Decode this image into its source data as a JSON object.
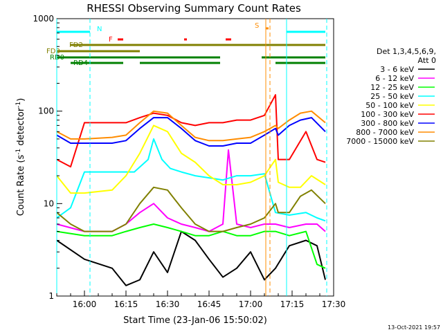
{
  "chart_data": {
    "type": "line",
    "title": "RHESSI Observing Summary Count Rates",
    "xlabel": "Start Time (23-Jan-06 15:50:02)",
    "ylabel_main": "Count Rate (s",
    "ylabel_sup1": "-1",
    "ylabel_mid": " detector",
    "ylabel_sup2": "-1",
    "ylabel_end": ")",
    "footer_date": "13-Oct-2021 19:57",
    "y_scale": "log",
    "ylim": [
      1,
      1000
    ],
    "xlim": [
      "15:50:02",
      "17:30"
    ],
    "x_ticks": [
      "16:00",
      "16:15",
      "16:30",
      "16:45",
      "17:00",
      "17:15",
      "17:30"
    ],
    "y_ticks": [
      "1",
      "10",
      "100",
      "1000"
    ],
    "legend_header": [
      "Det 1,3,4,5,6,9,",
      "Att 0"
    ],
    "series": [
      {
        "name": "3 - 6 keV",
        "color": "#000000",
        "t": [
          0,
          10,
          20,
          25,
          30,
          35,
          40,
          45,
          50,
          55,
          60,
          65,
          70,
          75,
          79,
          84,
          90,
          94,
          97
        ],
        "values": [
          4,
          2.5,
          2,
          1.3,
          1.5,
          3,
          1.8,
          5,
          4,
          2.5,
          1.6,
          2,
          3,
          1.5,
          2,
          3.5,
          4,
          3.5,
          1.5
        ]
      },
      {
        "name": "6 - 12 keV",
        "color": "#ff00ff",
        "t": [
          0,
          10,
          20,
          25,
          30,
          35,
          40,
          45,
          50,
          55,
          60,
          62,
          65,
          70,
          75,
          79,
          84,
          90,
          94,
          97
        ],
        "values": [
          6,
          5,
          5,
          6,
          8,
          10,
          7,
          6,
          5.5,
          5,
          6,
          38,
          6,
          5.5,
          6,
          6,
          5.5,
          6,
          6,
          5
        ]
      },
      {
        "name": "12 - 25 keV",
        "color": "#00ff00",
        "t": [
          0,
          10,
          20,
          25,
          30,
          35,
          40,
          45,
          50,
          55,
          60,
          65,
          70,
          75,
          79,
          84,
          90,
          94,
          97
        ],
        "values": [
          5,
          4.5,
          4.5,
          5,
          5.5,
          6,
          5.5,
          5,
          4.5,
          4.5,
          5,
          4.5,
          4.5,
          5,
          5,
          4.5,
          5,
          2.2,
          2
        ]
      },
      {
        "name": "25 - 50 keV",
        "color": "#00ffff",
        "t": [
          0,
          5,
          10,
          20,
          25,
          28,
          33,
          35,
          38,
          41,
          45,
          50,
          55,
          60,
          65,
          70,
          75,
          79,
          84,
          90,
          94,
          97
        ],
        "values": [
          7,
          9,
          22,
          22,
          22,
          22,
          30,
          50,
          30,
          24,
          22,
          20,
          19,
          18,
          20,
          20,
          21,
          8,
          7.5,
          8,
          7,
          6.5
        ]
      },
      {
        "name": "50 - 100 keV",
        "color": "#ffff00",
        "t": [
          0,
          5,
          10,
          20,
          25,
          30,
          35,
          40,
          45,
          50,
          55,
          60,
          65,
          70,
          75,
          79,
          80,
          84,
          88,
          92,
          97
        ],
        "values": [
          20,
          13,
          13,
          14,
          20,
          35,
          70,
          60,
          35,
          28,
          20,
          16,
          16,
          17,
          20,
          30,
          17,
          15,
          15,
          20,
          16
        ]
      },
      {
        "name": "100 - 300 keV",
        "color": "#ff0000",
        "t": [
          0,
          5,
          10,
          25,
          30,
          35,
          40,
          45,
          50,
          55,
          60,
          65,
          70,
          75,
          79,
          80,
          84,
          90,
          94,
          97
        ],
        "values": [
          30,
          25,
          75,
          75,
          85,
          95,
          90,
          75,
          70,
          75,
          75,
          80,
          80,
          90,
          150,
          30,
          30,
          60,
          30,
          28
        ]
      },
      {
        "name": "300 - 800 keV",
        "color": "#0000ff",
        "t": [
          0,
          5,
          10,
          20,
          25,
          30,
          35,
          40,
          45,
          50,
          55,
          60,
          65,
          70,
          75,
          79,
          80,
          84,
          88,
          92,
          97
        ],
        "values": [
          55,
          45,
          45,
          45,
          48,
          65,
          85,
          85,
          65,
          48,
          42,
          42,
          45,
          45,
          55,
          65,
          55,
          70,
          80,
          85,
          60
        ]
      },
      {
        "name": "800 - 7000 keV",
        "color": "#ff8c00",
        "t": [
          0,
          5,
          10,
          20,
          25,
          30,
          35,
          40,
          45,
          50,
          55,
          60,
          65,
          70,
          75,
          79,
          80,
          84,
          88,
          92,
          97
        ],
        "values": [
          60,
          50,
          50,
          52,
          55,
          75,
          100,
          95,
          70,
          52,
          48,
          48,
          50,
          52,
          60,
          70,
          65,
          80,
          95,
          100,
          75
        ]
      },
      {
        "name": "7000 - 15000 keV",
        "color": "#808000",
        "t": [
          0,
          5,
          10,
          20,
          25,
          30,
          35,
          40,
          45,
          50,
          55,
          60,
          65,
          70,
          75,
          79,
          80,
          84,
          88,
          92,
          97
        ],
        "values": [
          8,
          6,
          5,
          5,
          6,
          10,
          15,
          14,
          9,
          6,
          5,
          5,
          5.5,
          6,
          7,
          10,
          8,
          8,
          12,
          14,
          10
        ]
      }
    ],
    "flag_rows": [
      {
        "label": "N",
        "color": "#00ffff",
        "segments": [
          [
            0,
            12
          ],
          [
            83,
            97
          ]
        ]
      },
      {
        "label": "S",
        "color": "#ff8c00",
        "segments": [
          [
            75.5,
            76.5
          ]
        ]
      },
      {
        "label": "F",
        "color": "#ff0000",
        "segments": [
          [
            22,
            24
          ],
          [
            46,
            47
          ],
          [
            61,
            63
          ]
        ]
      },
      {
        "label": "FD2",
        "color": "#808000",
        "segments": [
          [
            5,
            97
          ]
        ]
      },
      {
        "label": "FD3",
        "color": "#808000",
        "segments": [
          [
            0,
            30
          ]
        ]
      },
      {
        "label": "RD0",
        "color": "#008000",
        "segments": [
          [
            0,
            59
          ],
          [
            74,
            97
          ]
        ]
      },
      {
        "label": "RD4",
        "color": "#008000",
        "segments": [
          [
            5,
            24
          ],
          [
            30,
            59
          ],
          [
            79,
            97
          ]
        ]
      }
    ],
    "vertical_markers": [
      {
        "t": 0,
        "color": "#00ffff",
        "style": "solid"
      },
      {
        "t": 12,
        "color": "#00ffff",
        "style": "dashed"
      },
      {
        "t": 75.5,
        "color": "#ff8c00",
        "style": "solid"
      },
      {
        "t": 77,
        "color": "#ff8c00",
        "style": "dashed"
      },
      {
        "t": 83,
        "color": "#00ffff",
        "style": "solid"
      },
      {
        "t": 97.5,
        "color": "#00ffff",
        "style": "dashed"
      }
    ],
    "grid": false,
    "legend_position": "right"
  }
}
